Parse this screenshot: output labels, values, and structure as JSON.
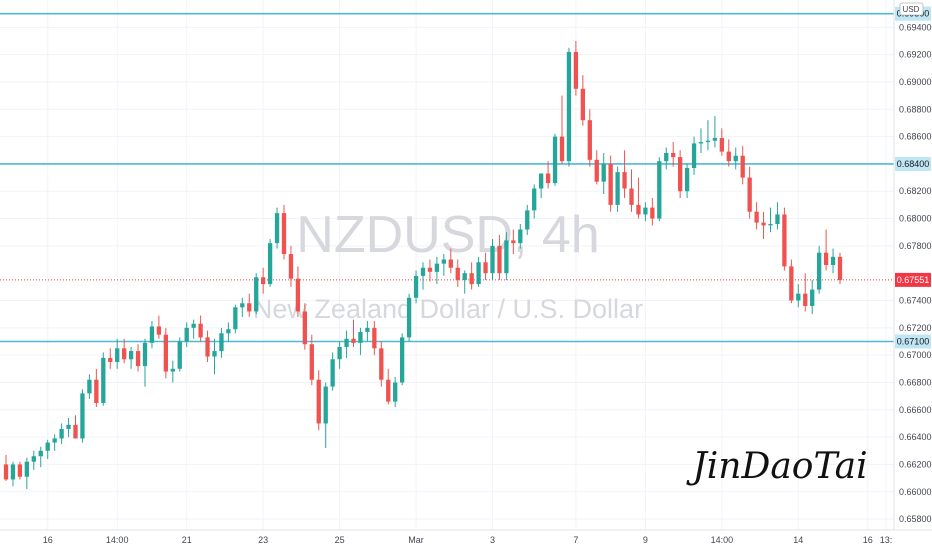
{
  "chart_data": {
    "type": "candlestick",
    "symbol": "NZDUSD, 4h",
    "description": "New Zealand Dollar / U.S. Dollar",
    "currency": "USD",
    "watermark": "JinDaoTai",
    "ylim": [
      0.6572,
      0.696
    ],
    "price_ticks": [
      "0.69400",
      "0.69200",
      "0.69000",
      "0.68800",
      "0.68600",
      "0.68200",
      "0.68000",
      "0.67800",
      "0.67400",
      "0.67200",
      "0.67000",
      "0.66800",
      "0.66600",
      "0.66400",
      "0.66200",
      "0.66000",
      "0.65800"
    ],
    "x_ticks": [
      "16",
      "14:00",
      "21",
      "23",
      "25",
      "Mar",
      "3",
      "7",
      "9",
      "14:00",
      "14",
      "16",
      "13:"
    ],
    "horizontal_lines": [
      {
        "price": 0.695,
        "label": "0.69500"
      },
      {
        "price": 0.684,
        "label": "0.68400"
      },
      {
        "price": 0.671,
        "label": "0.67100"
      }
    ],
    "last_price": {
      "value": 0.67551,
      "label": "0.67551"
    },
    "colors": {
      "up": "#26a69a",
      "down": "#ef5350",
      "hline": "#4fb8d6",
      "last": "#f23645"
    },
    "candles": [
      [
        0.662,
        0.6627,
        0.6608,
        0.6609
      ],
      [
        0.6609,
        0.6622,
        0.6604,
        0.662
      ],
      [
        0.662,
        0.6622,
        0.6609,
        0.6611
      ],
      [
        0.6611,
        0.6625,
        0.6602,
        0.6622
      ],
      [
        0.6622,
        0.663,
        0.6616,
        0.6626
      ],
      [
        0.6626,
        0.6633,
        0.6618,
        0.663
      ],
      [
        0.663,
        0.6638,
        0.6624,
        0.6636
      ],
      [
        0.6636,
        0.6642,
        0.663,
        0.6639
      ],
      [
        0.6639,
        0.665,
        0.6635,
        0.6646
      ],
      [
        0.6646,
        0.6654,
        0.664,
        0.6649
      ],
      [
        0.6649,
        0.6656,
        0.6642,
        0.6639
      ],
      [
        0.6639,
        0.6675,
        0.6636,
        0.6672
      ],
      [
        0.6672,
        0.6686,
        0.6668,
        0.6682
      ],
      [
        0.6682,
        0.669,
        0.6662,
        0.6665
      ],
      [
        0.6665,
        0.6702,
        0.6663,
        0.6698
      ],
      [
        0.6698,
        0.6705,
        0.669,
        0.6695
      ],
      [
        0.6695,
        0.6712,
        0.669,
        0.6705
      ],
      [
        0.6705,
        0.6712,
        0.6694,
        0.6697
      ],
      [
        0.6697,
        0.6706,
        0.669,
        0.6703
      ],
      [
        0.6703,
        0.6708,
        0.6688,
        0.6692
      ],
      [
        0.6692,
        0.6712,
        0.6677,
        0.6709
      ],
      [
        0.6709,
        0.6725,
        0.6705,
        0.6721
      ],
      [
        0.6721,
        0.6729,
        0.6712,
        0.6715
      ],
      [
        0.6715,
        0.672,
        0.6683,
        0.6688
      ],
      [
        0.6688,
        0.6696,
        0.668,
        0.669
      ],
      [
        0.669,
        0.6713,
        0.6688,
        0.671
      ],
      [
        0.671,
        0.6724,
        0.6706,
        0.672
      ],
      [
        0.672,
        0.6726,
        0.6712,
        0.6723
      ],
      [
        0.6723,
        0.6729,
        0.671,
        0.6713
      ],
      [
        0.6713,
        0.6718,
        0.6695,
        0.6699
      ],
      [
        0.6699,
        0.6712,
        0.6686,
        0.6703
      ],
      [
        0.6703,
        0.672,
        0.6698,
        0.6716
      ],
      [
        0.6716,
        0.6724,
        0.671,
        0.6719
      ],
      [
        0.6719,
        0.6737,
        0.6716,
        0.6735
      ],
      [
        0.6735,
        0.6742,
        0.6728,
        0.6738
      ],
      [
        0.6738,
        0.6745,
        0.6728,
        0.6732
      ],
      [
        0.6732,
        0.676,
        0.673,
        0.6757
      ],
      [
        0.6757,
        0.6764,
        0.6745,
        0.6752
      ],
      [
        0.6752,
        0.6785,
        0.675,
        0.6782
      ],
      [
        0.6782,
        0.6808,
        0.6778,
        0.6804
      ],
      [
        0.6804,
        0.681,
        0.677,
        0.6774
      ],
      [
        0.6774,
        0.678,
        0.675,
        0.6756
      ],
      [
        0.6756,
        0.6765,
        0.6728,
        0.6732
      ],
      [
        0.6732,
        0.6738,
        0.6704,
        0.6708
      ],
      [
        0.6708,
        0.6715,
        0.6678,
        0.6682
      ],
      [
        0.6682,
        0.6689,
        0.6645,
        0.665
      ],
      [
        0.665,
        0.668,
        0.6632,
        0.6677
      ],
      [
        0.6677,
        0.6702,
        0.6674,
        0.6697
      ],
      [
        0.6697,
        0.671,
        0.669,
        0.6706
      ],
      [
        0.6706,
        0.6718,
        0.6698,
        0.6712
      ],
      [
        0.6712,
        0.6726,
        0.6706,
        0.6709
      ],
      [
        0.6709,
        0.672,
        0.67,
        0.6717
      ],
      [
        0.6717,
        0.6725,
        0.671,
        0.672
      ],
      [
        0.672,
        0.6725,
        0.67,
        0.6705
      ],
      [
        0.6705,
        0.671,
        0.6677,
        0.6682
      ],
      [
        0.6682,
        0.669,
        0.6664,
        0.6666
      ],
      [
        0.6666,
        0.6684,
        0.6662,
        0.668
      ],
      [
        0.668,
        0.6716,
        0.6678,
        0.6713
      ],
      [
        0.6713,
        0.6745,
        0.671,
        0.6742
      ],
      [
        0.6742,
        0.6762,
        0.6738,
        0.6758
      ],
      [
        0.6758,
        0.6768,
        0.6748,
        0.6764
      ],
      [
        0.6764,
        0.677,
        0.6754,
        0.6761
      ],
      [
        0.6761,
        0.6772,
        0.6752,
        0.6767
      ],
      [
        0.6767,
        0.6774,
        0.6758,
        0.677
      ],
      [
        0.677,
        0.6778,
        0.676,
        0.6764
      ],
      [
        0.6764,
        0.677,
        0.675,
        0.6755
      ],
      [
        0.6755,
        0.6762,
        0.6745,
        0.676
      ],
      [
        0.676,
        0.6768,
        0.6748,
        0.6752
      ],
      [
        0.6752,
        0.6772,
        0.675,
        0.6768
      ],
      [
        0.6768,
        0.6775,
        0.6755,
        0.676
      ],
      [
        0.676,
        0.6785,
        0.6755,
        0.678
      ],
      [
        0.678,
        0.6788,
        0.6755,
        0.676
      ],
      [
        0.676,
        0.679,
        0.6755,
        0.6784
      ],
      [
        0.6784,
        0.6792,
        0.6774,
        0.6782
      ],
      [
        0.6782,
        0.6796,
        0.6778,
        0.6792
      ],
      [
        0.6792,
        0.681,
        0.6788,
        0.6806
      ],
      [
        0.6806,
        0.6825,
        0.68,
        0.6822
      ],
      [
        0.6822,
        0.6832,
        0.6815,
        0.6833
      ],
      [
        0.6833,
        0.6842,
        0.6822,
        0.6826
      ],
      [
        0.6826,
        0.6862,
        0.6824,
        0.686
      ],
      [
        0.686,
        0.689,
        0.684,
        0.6842
      ],
      [
        0.6842,
        0.6925,
        0.6838,
        0.6922
      ],
      [
        0.6922,
        0.693,
        0.689,
        0.6895
      ],
      [
        0.6895,
        0.6905,
        0.6868,
        0.6872
      ],
      [
        0.6872,
        0.688,
        0.6838,
        0.6843
      ],
      [
        0.6843,
        0.685,
        0.6825,
        0.6827
      ],
      [
        0.6827,
        0.6848,
        0.6818,
        0.684
      ],
      [
        0.684,
        0.6846,
        0.6805,
        0.681
      ],
      [
        0.681,
        0.6838,
        0.6805,
        0.6834
      ],
      [
        0.6834,
        0.685,
        0.6815,
        0.6822
      ],
      [
        0.6822,
        0.6836,
        0.6805,
        0.681
      ],
      [
        0.681,
        0.683,
        0.68,
        0.6803
      ],
      [
        0.6803,
        0.6812,
        0.6798,
        0.6808
      ],
      [
        0.6808,
        0.6815,
        0.6795,
        0.68
      ],
      [
        0.68,
        0.6845,
        0.6798,
        0.6842
      ],
      [
        0.6842,
        0.6852,
        0.6836,
        0.6848
      ],
      [
        0.6848,
        0.6856,
        0.6838,
        0.6845
      ],
      [
        0.6845,
        0.685,
        0.6815,
        0.682
      ],
      [
        0.682,
        0.684,
        0.6815,
        0.6837
      ],
      [
        0.6837,
        0.686,
        0.6832,
        0.6855
      ],
      [
        0.6855,
        0.6866,
        0.6848,
        0.6856
      ],
      [
        0.6856,
        0.6872,
        0.685,
        0.6857
      ],
      [
        0.6857,
        0.6875,
        0.6852,
        0.6859
      ],
      [
        0.6859,
        0.6866,
        0.6846,
        0.6849
      ],
      [
        0.6849,
        0.6858,
        0.6838,
        0.6842
      ],
      [
        0.6842,
        0.6852,
        0.6836,
        0.6846
      ],
      [
        0.6846,
        0.6853,
        0.6825,
        0.683
      ],
      [
        0.683,
        0.6838,
        0.68,
        0.6805
      ],
      [
        0.6805,
        0.6812,
        0.6792,
        0.6797
      ],
      [
        0.6797,
        0.6805,
        0.6785,
        0.6795
      ],
      [
        0.6795,
        0.6808,
        0.679,
        0.6796
      ],
      [
        0.6796,
        0.6812,
        0.6792,
        0.6803
      ],
      [
        0.6803,
        0.6808,
        0.6762,
        0.6765
      ],
      [
        0.6765,
        0.677,
        0.6738,
        0.674
      ],
      [
        0.674,
        0.6752,
        0.6735,
        0.6745
      ],
      [
        0.6745,
        0.676,
        0.6732,
        0.6736
      ],
      [
        0.6736,
        0.6755,
        0.673,
        0.6748
      ],
      [
        0.6748,
        0.678,
        0.6745,
        0.6775
      ],
      [
        0.6775,
        0.6792,
        0.6762,
        0.6766
      ],
      [
        0.6766,
        0.6778,
        0.676,
        0.6772
      ],
      [
        0.6772,
        0.6775,
        0.6752,
        0.6755
      ]
    ]
  }
}
